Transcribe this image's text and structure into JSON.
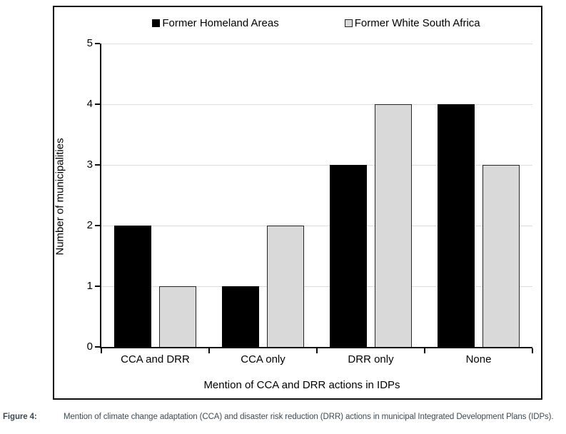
{
  "figure": {
    "caption_label": "Figure 4:",
    "caption_text": "Mention of climate change adaptation (CCA) and disaster risk reduction (DRR) actions in municipal Integrated Development Plans (IDPs)."
  },
  "chart_data": {
    "type": "bar",
    "categories": [
      "CCA and DRR",
      "CCA only",
      "DRR only",
      "None"
    ],
    "series": [
      {
        "name": "Former Homeland Areas",
        "values": [
          2,
          1,
          3,
          4
        ],
        "fill": "#000000",
        "border": "#000000"
      },
      {
        "name": "Former White South Africa",
        "values": [
          1,
          2,
          4,
          3
        ],
        "fill": "#d9d9d9",
        "border": "#262626"
      }
    ],
    "xlabel": "Mention of CCA and DRR actions in IDPs",
    "ylabel": "Number of municipalities",
    "ylim": [
      0,
      5
    ],
    "yticks": [
      0,
      1,
      2,
      3,
      4,
      5
    ],
    "grid": "horizontal",
    "legend_position": "top",
    "colors": {
      "grid": "#dcdcdc",
      "axis": "#0d0d0d",
      "caption": "#3e4a52"
    }
  }
}
